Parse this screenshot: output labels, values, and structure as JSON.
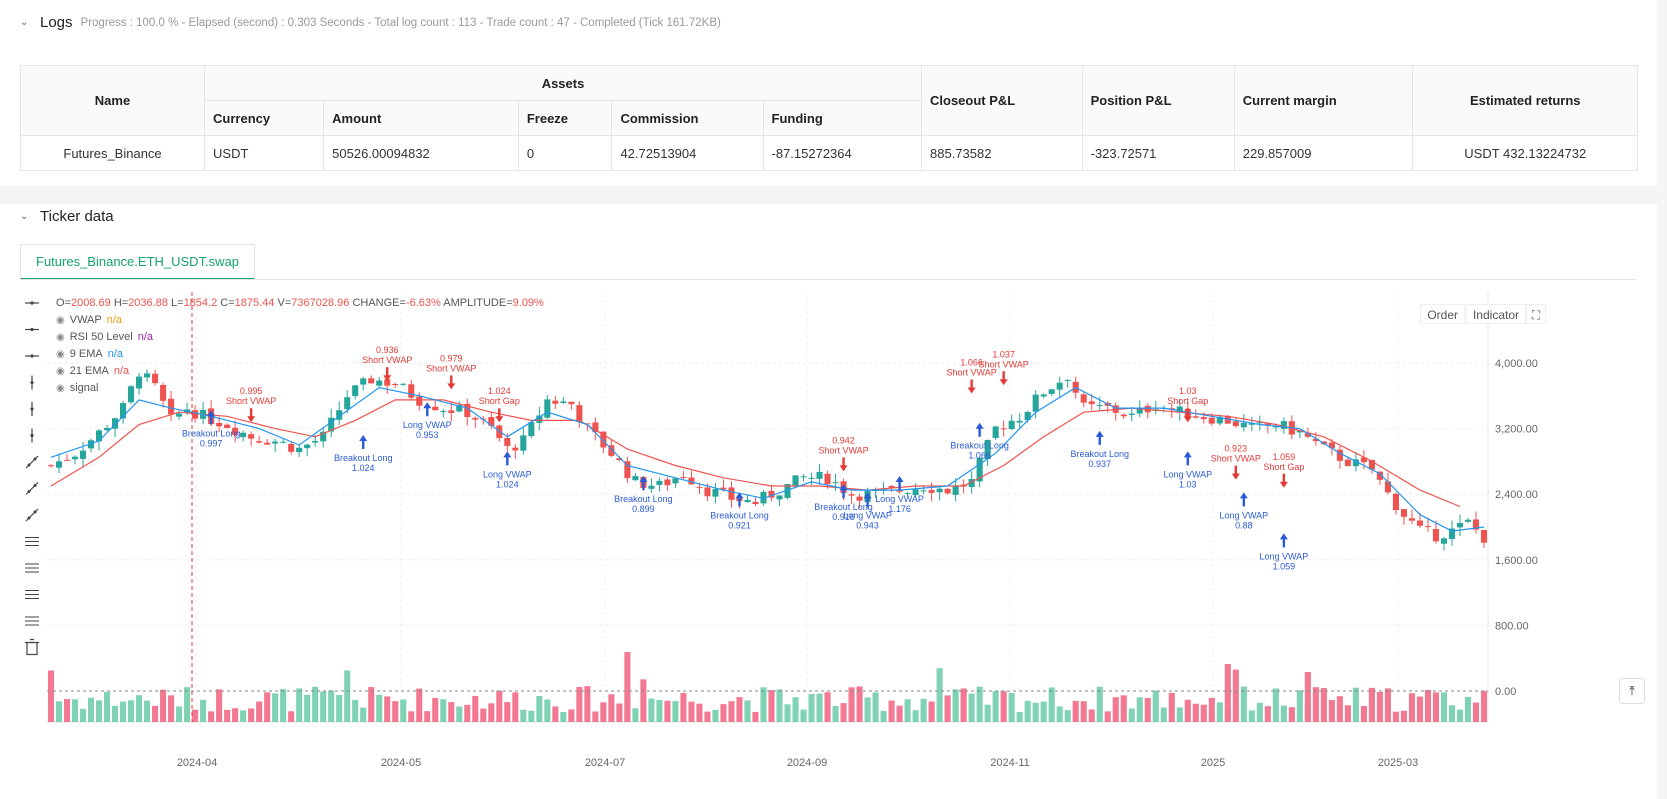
{
  "logs": {
    "title": "Logs",
    "status": "Progress : 100.0 % - Elapsed (second) : 0.303  Seconds - Total log count : 113 - Trade count : 47 - Completed (Tick 161.72KB)",
    "table": {
      "group_header": "Assets",
      "headers": {
        "name": "Name",
        "currency": "Currency",
        "amount": "Amount",
        "freeze": "Freeze",
        "commission": "Commission",
        "funding": "Funding",
        "closeout": "Closeout P&L",
        "position": "Position P&L",
        "margin": "Current margin",
        "returns": "Estimated returns"
      },
      "row": {
        "name": "Futures_Binance",
        "currency": "USDT",
        "amount": "50526.00094832",
        "freeze": "0",
        "commission": "42.72513904",
        "funding": "-87.15272364",
        "closeout": "885.73582",
        "position": "-323.72571",
        "margin": "229.857009",
        "returns": "USDT 432.13224732"
      }
    }
  },
  "ticker": {
    "title": "Ticker data",
    "tab_label": "Futures_Binance.ETH_USDT.swap",
    "buttons": {
      "order": "Order",
      "indicator": "Indicator"
    },
    "ohlc": {
      "o_label": "O=",
      "o": "2008.69",
      "h_label": "H=",
      "h": "2036.88",
      "l_label": "L=",
      "l": "1854.2",
      "c_label": "C=",
      "c": "1875.44",
      "v_label": "V=",
      "v": "7367028.96",
      "change_label": "CHANGE=",
      "change": "-6.63%",
      "amp_label": "AMPLITUDE=",
      "amp": "9.09%"
    },
    "legend": [
      {
        "name": "VWAP",
        "value": "n/a",
        "color": "#f39c12"
      },
      {
        "name": "RSI 50 Level",
        "value": "n/a",
        "color": "#9c27b0"
      },
      {
        "name": "9 EMA",
        "value": "n/a",
        "color": "#2196f3"
      },
      {
        "name": "21 EMA",
        "value": "n/a",
        "color": "#ef5350"
      },
      {
        "name": "signal",
        "value": "",
        "color": "#555"
      }
    ]
  },
  "chart_data": {
    "type": "candlestick",
    "title": "Futures_Binance.ETH_USDT.swap",
    "y_ticks": [
      "4,000.00",
      "3,200.00",
      "2,400.00",
      "1,600.00",
      "800.00",
      "0.00"
    ],
    "y_tick_values": [
      4000,
      3200,
      2400,
      1600,
      800,
      0
    ],
    "x_ticks": [
      "2024-04",
      "2024-05",
      "2024-07",
      "2024-09",
      "2024-11",
      "2025",
      "2025-03"
    ],
    "close_path": [
      [
        0,
        2750
      ],
      [
        3,
        2900
      ],
      [
        6,
        3150
      ],
      [
        9,
        3450
      ],
      [
        11,
        3900
      ],
      [
        13,
        3700
      ],
      [
        15,
        3300
      ],
      [
        17,
        3450
      ],
      [
        19,
        3350
      ],
      [
        22,
        3250
      ],
      [
        25,
        3100
      ],
      [
        28,
        3050
      ],
      [
        31,
        2950
      ],
      [
        34,
        3100
      ],
      [
        37,
        3600
      ],
      [
        40,
        3800
      ],
      [
        43,
        3750
      ],
      [
        46,
        3550
      ],
      [
        49,
        3450
      ],
      [
        52,
        3400
      ],
      [
        55,
        3200
      ],
      [
        57,
        2950
      ],
      [
        59,
        3050
      ],
      [
        62,
        3550
      ],
      [
        65,
        3500
      ],
      [
        67,
        3200
      ],
      [
        70,
        2900
      ],
      [
        73,
        2550
      ],
      [
        76,
        2500
      ],
      [
        79,
        2650
      ],
      [
        82,
        2450
      ],
      [
        85,
        2350
      ],
      [
        88,
        2300
      ],
      [
        91,
        2450
      ],
      [
        94,
        2600
      ],
      [
        97,
        2600
      ],
      [
        100,
        2400
      ],
      [
        103,
        2400
      ],
      [
        106,
        2450
      ],
      [
        109,
        2500
      ],
      [
        112,
        2450
      ],
      [
        115,
        2550
      ],
      [
        118,
        3200
      ],
      [
        121,
        3350
      ],
      [
        124,
        3650
      ],
      [
        127,
        3850
      ],
      [
        129,
        3450
      ],
      [
        132,
        3450
      ],
      [
        135,
        3350
      ],
      [
        138,
        3500
      ],
      [
        141,
        3400
      ],
      [
        144,
        3350
      ],
      [
        147,
        3300
      ],
      [
        150,
        3200
      ],
      [
        153,
        3250
      ],
      [
        156,
        3150
      ],
      [
        159,
        2950
      ],
      [
        162,
        2800
      ],
      [
        165,
        2700
      ],
      [
        167,
        2400
      ],
      [
        169,
        2150
      ],
      [
        171,
        1950
      ],
      [
        173,
        1900
      ],
      [
        175,
        1950
      ],
      [
        177,
        2050
      ],
      [
        179,
        1875
      ]
    ],
    "ema9_path": [
      [
        0,
        2850
      ],
      [
        6,
        3050
      ],
      [
        11,
        3550
      ],
      [
        15,
        3450
      ],
      [
        20,
        3350
      ],
      [
        26,
        3200
      ],
      [
        31,
        3000
      ],
      [
        36,
        3350
      ],
      [
        41,
        3700
      ],
      [
        46,
        3600
      ],
      [
        52,
        3450
      ],
      [
        57,
        3100
      ],
      [
        62,
        3400
      ],
      [
        67,
        3250
      ],
      [
        72,
        2750
      ],
      [
        78,
        2600
      ],
      [
        84,
        2450
      ],
      [
        89,
        2350
      ],
      [
        95,
        2550
      ],
      [
        100,
        2450
      ],
      [
        106,
        2450
      ],
      [
        112,
        2500
      ],
      [
        118,
        2900
      ],
      [
        123,
        3400
      ],
      [
        128,
        3700
      ],
      [
        133,
        3450
      ],
      [
        139,
        3450
      ],
      [
        145,
        3350
      ],
      [
        151,
        3250
      ],
      [
        156,
        3200
      ],
      [
        161,
        2900
      ],
      [
        166,
        2650
      ],
      [
        171,
        2150
      ],
      [
        175,
        1950
      ],
      [
        179,
        2000
      ]
    ],
    "ema21_path": [
      [
        0,
        2500
      ],
      [
        6,
        2850
      ],
      [
        11,
        3250
      ],
      [
        16,
        3400
      ],
      [
        22,
        3350
      ],
      [
        28,
        3200
      ],
      [
        33,
        3100
      ],
      [
        38,
        3300
      ],
      [
        43,
        3550
      ],
      [
        49,
        3550
      ],
      [
        55,
        3400
      ],
      [
        60,
        3300
      ],
      [
        66,
        3300
      ],
      [
        72,
        2950
      ],
      [
        78,
        2750
      ],
      [
        84,
        2600
      ],
      [
        90,
        2500
      ],
      [
        96,
        2500
      ],
      [
        102,
        2450
      ],
      [
        108,
        2500
      ],
      [
        114,
        2500
      ],
      [
        119,
        2750
      ],
      [
        124,
        3100
      ],
      [
        129,
        3400
      ],
      [
        135,
        3450
      ],
      [
        141,
        3400
      ],
      [
        147,
        3350
      ],
      [
        153,
        3250
      ],
      [
        159,
        3100
      ],
      [
        165,
        2800
      ],
      [
        171,
        2450
      ],
      [
        176,
        2250
      ]
    ],
    "annotations": [
      {
        "text": [
          "Breakout Long",
          "0.997"
        ],
        "bar": 20,
        "price": 3300,
        "dir": "long"
      },
      {
        "text": [
          "0.995",
          "Short VWAP"
        ],
        "bar": 25,
        "price": 3400,
        "dir": "short"
      },
      {
        "text": [
          "Breakout Long",
          "1.024"
        ],
        "bar": 39,
        "price": 3000,
        "dir": "long"
      },
      {
        "text": [
          "0.936",
          "Short VWAP"
        ],
        "bar": 42,
        "price": 3900,
        "dir": "short"
      },
      {
        "text": [
          "Long VWAP",
          "0.953"
        ],
        "bar": 47,
        "price": 3400,
        "dir": "long"
      },
      {
        "text": [
          "0.979",
          "Short VWAP"
        ],
        "bar": 50,
        "price": 3800,
        "dir": "short"
      },
      {
        "text": [
          "1.024",
          "Short Gap"
        ],
        "bar": 56,
        "price": 3400,
        "dir": "short"
      },
      {
        "text": [
          "Long VWAP",
          "1.024"
        ],
        "bar": 57,
        "price": 2800,
        "dir": "long"
      },
      {
        "text": [
          "Breakout Long",
          "0.899"
        ],
        "bar": 74,
        "price": 2500,
        "dir": "long"
      },
      {
        "text": [
          "Breakout Long",
          "0.921"
        ],
        "bar": 86,
        "price": 2300,
        "dir": "long"
      },
      {
        "text": [
          "0.942",
          "Short VWAP"
        ],
        "bar": 99,
        "price": 2800,
        "dir": "short"
      },
      {
        "text": [
          "Breakout Long",
          "0.916"
        ],
        "bar": 99,
        "price": 2400,
        "dir": "long"
      },
      {
        "text": [
          "Long VWAP",
          "0.943"
        ],
        "bar": 102,
        "price": 2300,
        "dir": "long"
      },
      {
        "text": [
          "Long VWAP",
          "1.176"
        ],
        "bar": 106,
        "price": 2500,
        "dir": "long"
      },
      {
        "text": [
          "1.066",
          "Short VWAP"
        ],
        "bar": 115,
        "price": 3750,
        "dir": "short"
      },
      {
        "text": [
          "1.037",
          "Short VWAP"
        ],
        "bar": 119,
        "price": 3850,
        "dir": "short"
      },
      {
        "text": [
          "Breakout Long",
          "1.066"
        ],
        "bar": 116,
        "price": 3150,
        "dir": "long"
      },
      {
        "text": [
          "Breakout Long",
          "0.937"
        ],
        "bar": 131,
        "price": 3050,
        "dir": "long"
      },
      {
        "text": [
          "1.03",
          "Short Gap"
        ],
        "bar": 142,
        "price": 3400,
        "dir": "short"
      },
      {
        "text": [
          "Long VWAP",
          "1.03"
        ],
        "bar": 142,
        "price": 2800,
        "dir": "long"
      },
      {
        "text": [
          "0.923",
          "Short VWAP"
        ],
        "bar": 148,
        "price": 2700,
        "dir": "short"
      },
      {
        "text": [
          "Long VWAP",
          "0.88"
        ],
        "bar": 149,
        "price": 2300,
        "dir": "long"
      },
      {
        "text": [
          "1.059",
          "Short Gap"
        ],
        "bar": 154,
        "price": 2600,
        "dir": "short"
      },
      {
        "text": [
          "Long VWAP",
          "1.059"
        ],
        "bar": 154,
        "price": 1800,
        "dir": "long"
      }
    ],
    "colors": {
      "up": "#26a69a",
      "up_vol": "#7fd3b4",
      "down": "#ef5350",
      "down_vol": "#f27991",
      "ema9": "#2196f3",
      "ema21": "#ef5350",
      "vwap": "#f39c12",
      "long": "#2a5bd7",
      "short": "#e53935"
    }
  }
}
